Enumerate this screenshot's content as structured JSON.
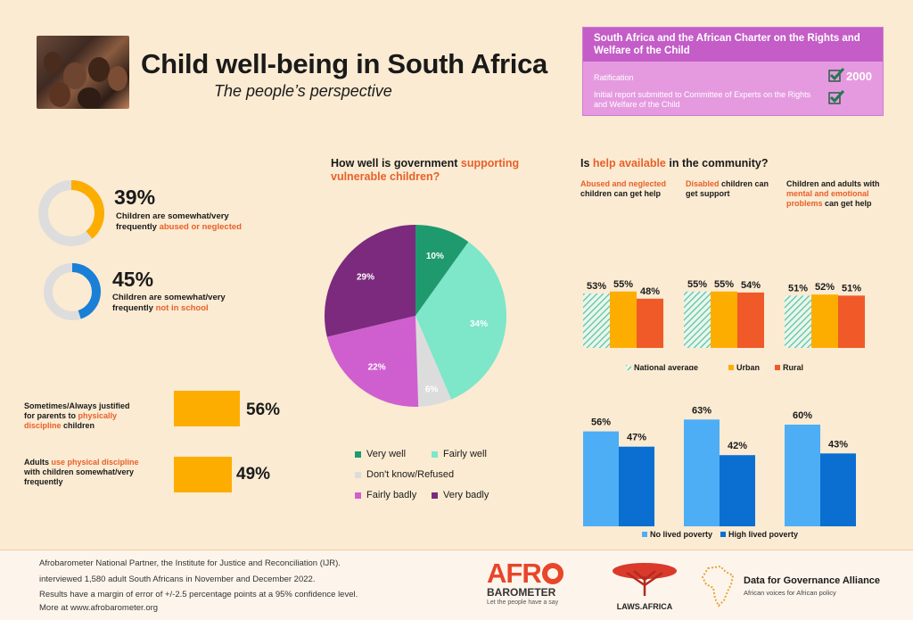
{
  "header": {
    "title": "Child well-being in South Africa",
    "subtitle": "The people’s perspective"
  },
  "charter": {
    "heading": "South Africa and the African Charter on the Rights and Welfare of the Child",
    "ratification_label": "Ratification",
    "ratification_year": "2000",
    "report_label": "Initial report submitted to Committee of Experts on the Rights and Welfare of the Child"
  },
  "rings": [
    {
      "pct": "39%",
      "text_a": "Children are somewhat/very",
      "text_b": "frequently ",
      "text_accent": "abused or neglected",
      "value": 39,
      "color": "#fdad00"
    },
    {
      "pct": "45%",
      "text_a": "Children are somewhat/very",
      "text_b": "frequently ",
      "text_accent": "not in school",
      "value": 45,
      "color": "#1a7fd6"
    }
  ],
  "discipline": [
    {
      "line1": "Sometimes/Always justified",
      "line2a": "for parents to ",
      "line2accent": "physically",
      "line3accent": "discipline",
      "line3b": " children",
      "pct": "56%",
      "value": 56
    },
    {
      "line1a": "Adults ",
      "line1accent": "use physical discipline",
      "line2": "with children somewhat/very",
      "line3": "frequently",
      "pct": "49%",
      "value": 49
    }
  ],
  "pie_section": {
    "title_a": "How well is government ",
    "title_accent": "supporting",
    "title_accent2": "vulnerable children?"
  },
  "help_section": {
    "title_a": "Is ",
    "title_accent": "help available",
    "title_b": " in the community?",
    "col1_accent": "Abused and neglected",
    "col1_b": "children can get help",
    "col2_accent": "Disabled",
    "col2_b": " children can",
    "col2_c": "get support",
    "col3_a": "Children and adults with",
    "col3_accent": "mental and emotional",
    "col3_accent2": "problems",
    "col3_b": " can get help"
  },
  "footer": {
    "line1": "Afrobarometer National Partner, the Institute for Justice and Reconciliation (IJR).",
    "line2": "interviewed 1,580 adult South Africans in November and December 2022.",
    "line3": "Results have a margin of error of +/-2.5 percentage points at a 95% confidence level.",
    "line4": "More at www.afrobarometer.org",
    "afro_a": "AFR",
    "afro_b": "BAROMETER",
    "afro_tag": "Let the people have a say",
    "laws": "LAWS.AFRICA",
    "dfga_title": "Data for Governance Alliance",
    "dfga_tag": "African voices for African policy"
  },
  "chart_data": [
    {
      "type": "pie",
      "title": "How well is government supporting vulnerable children?",
      "categories": [
        "Very well",
        "Fairly well",
        "Don't know/Refused",
        "Fairly badly",
        "Very badly"
      ],
      "values": [
        10,
        34,
        6,
        22,
        29
      ],
      "labels": [
        "10%",
        "34%",
        "6%",
        "22%",
        "29%"
      ],
      "colors": [
        "#1f9a6f",
        "#7ee6c9",
        "#dcdcdc",
        "#cf5fcf",
        "#7b2a7d"
      ]
    },
    {
      "type": "bar",
      "title": "Is help available in the community?",
      "categories": [
        "Abused and neglected children can get help",
        "Disabled children can get support",
        "Children and adults with mental and emotional problems can get help"
      ],
      "series": [
        {
          "name": "National average",
          "values": [
            53,
            55,
            51
          ],
          "labels": [
            "53%",
            "55%",
            "51%"
          ],
          "color": "#7ad3b4"
        },
        {
          "name": "Urban",
          "values": [
            55,
            55,
            52
          ],
          "labels": [
            "55%",
            "55%",
            "52%"
          ],
          "color": "#fdad00"
        },
        {
          "name": "Rural",
          "values": [
            48,
            54,
            51
          ],
          "labels": [
            "48%",
            "54%",
            "51%"
          ],
          "color": "#f05a28"
        }
      ]
    },
    {
      "type": "bar",
      "categories": [
        "Abused and neglected children can get help",
        "Disabled children can get support",
        "Children and adults with mental and emotional problems can get help"
      ],
      "series": [
        {
          "name": "No lived poverty",
          "values": [
            56,
            63,
            60
          ],
          "labels": [
            "56%",
            "63%",
            "60%"
          ],
          "color": "#4daef5"
        },
        {
          "name": "High lived poverty",
          "values": [
            47,
            42,
            43
          ],
          "labels": [
            "47%",
            "42%",
            "43%"
          ],
          "color": "#0a6fd0"
        }
      ]
    }
  ]
}
